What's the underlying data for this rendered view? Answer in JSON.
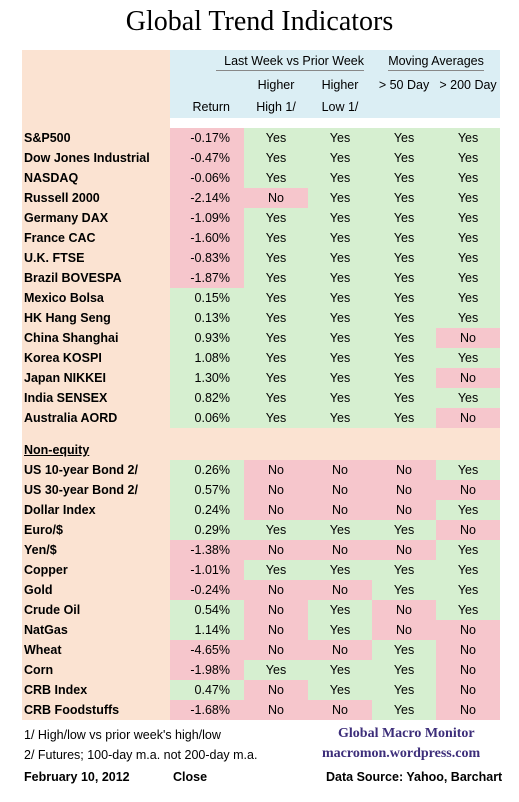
{
  "title": "Global Trend Indicators",
  "header": {
    "group_week": "Last Week vs Prior Week",
    "group_ma": "Moving Averages",
    "return_label": "Return",
    "higher_high_1": "Higher",
    "higher_high_2": "High 1/",
    "higher_low_1": "Higher",
    "higher_low_2": "Low  1/",
    "ma50": "> 50 Day",
    "ma200": "> 200 Day"
  },
  "colors": {
    "yes_bg": "#d6efd0",
    "no_bg": "#f6c6cc",
    "name_bg": "#fbe3d2",
    "header_bg": "#dbeef4"
  },
  "chart_data": {
    "type": "table",
    "title": "Global Trend Indicators",
    "columns": [
      "",
      "Return",
      "Higher High 1/",
      "Higher Low 1/",
      "> 50 Day",
      "> 200 Day"
    ],
    "equity": [
      {
        "name": "S&P500",
        "ret": "-0.17%",
        "hh": "Yes",
        "hl": "Yes",
        "ma50": "Yes",
        "ma200": "Yes"
      },
      {
        "name": "Dow Jones Industrial",
        "ret": "-0.47%",
        "hh": "Yes",
        "hl": "Yes",
        "ma50": "Yes",
        "ma200": "Yes"
      },
      {
        "name": "NASDAQ",
        "ret": "-0.06%",
        "hh": "Yes",
        "hl": "Yes",
        "ma50": "Yes",
        "ma200": "Yes"
      },
      {
        "name": "Russell 2000",
        "ret": "-2.14%",
        "hh": "No",
        "hl": "Yes",
        "ma50": "Yes",
        "ma200": "Yes"
      },
      {
        "name": "Germany DAX",
        "ret": "-1.09%",
        "hh": "Yes",
        "hl": "Yes",
        "ma50": "Yes",
        "ma200": "Yes"
      },
      {
        "name": "France CAC",
        "ret": "-1.60%",
        "hh": "Yes",
        "hl": "Yes",
        "ma50": "Yes",
        "ma200": "Yes"
      },
      {
        "name": "U.K. FTSE",
        "ret": "-0.83%",
        "hh": "Yes",
        "hl": "Yes",
        "ma50": "Yes",
        "ma200": "Yes"
      },
      {
        "name": "Brazil BOVESPA",
        "ret": "-1.87%",
        "hh": "Yes",
        "hl": "Yes",
        "ma50": "Yes",
        "ma200": "Yes"
      },
      {
        "name": "Mexico Bolsa",
        "ret": "0.15%",
        "hh": "Yes",
        "hl": "Yes",
        "ma50": "Yes",
        "ma200": "Yes"
      },
      {
        "name": "HK  Hang Seng",
        "ret": "0.13%",
        "hh": "Yes",
        "hl": "Yes",
        "ma50": "Yes",
        "ma200": "Yes"
      },
      {
        "name": "China Shanghai",
        "ret": "0.93%",
        "hh": "Yes",
        "hl": "Yes",
        "ma50": "Yes",
        "ma200": "No"
      },
      {
        "name": "Korea KOSPI",
        "ret": "1.08%",
        "hh": "Yes",
        "hl": "Yes",
        "ma50": "Yes",
        "ma200": "Yes"
      },
      {
        "name": "Japan NIKKEI",
        "ret": "1.30%",
        "hh": "Yes",
        "hl": "Yes",
        "ma50": "Yes",
        "ma200": "No"
      },
      {
        "name": "India SENSEX",
        "ret": "0.82%",
        "hh": "Yes",
        "hl": "Yes",
        "ma50": "Yes",
        "ma200": "Yes"
      },
      {
        "name": "Australia AORD",
        "ret": "0.06%",
        "hh": "Yes",
        "hl": "Yes",
        "ma50": "Yes",
        "ma200": "No"
      }
    ],
    "section_label": "Non-equity",
    "non_equity": [
      {
        "name": "US 10-year Bond 2/",
        "ret": "0.26%",
        "hh": "No",
        "hl": "No",
        "ma50": "No",
        "ma200": "Yes"
      },
      {
        "name": "US 30-year Bond 2/",
        "ret": "0.57%",
        "hh": "No",
        "hl": "No",
        "ma50": "No",
        "ma200": "No"
      },
      {
        "name": "Dollar Index",
        "ret": "0.24%",
        "hh": "No",
        "hl": "No",
        "ma50": "No",
        "ma200": "Yes"
      },
      {
        "name": "Euro/$",
        "ret": "0.29%",
        "hh": "Yes",
        "hl": "Yes",
        "ma50": "Yes",
        "ma200": "No"
      },
      {
        "name": "Yen/$",
        "ret": "-1.38%",
        "hh": "No",
        "hl": "No",
        "ma50": "No",
        "ma200": "Yes"
      },
      {
        "name": "Copper",
        "ret": "-1.01%",
        "hh": "Yes",
        "hl": "Yes",
        "ma50": "Yes",
        "ma200": "Yes"
      },
      {
        "name": "Gold",
        "ret": "-0.24%",
        "hh": "No",
        "hl": "No",
        "ma50": "Yes",
        "ma200": "Yes"
      },
      {
        "name": "Crude Oil",
        "ret": "0.54%",
        "hh": "No",
        "hl": "Yes",
        "ma50": "No",
        "ma200": "Yes"
      },
      {
        "name": "NatGas",
        "ret": "1.14%",
        "hh": "No",
        "hl": "Yes",
        "ma50": "No",
        "ma200": "No"
      },
      {
        "name": "Wheat",
        "ret": "-4.65%",
        "hh": "No",
        "hl": "No",
        "ma50": "Yes",
        "ma200": "No"
      },
      {
        "name": "Corn",
        "ret": "-1.98%",
        "hh": "Yes",
        "hl": "Yes",
        "ma50": "Yes",
        "ma200": "No"
      },
      {
        "name": "CRB Index",
        "ret": "0.47%",
        "hh": "No",
        "hl": "Yes",
        "ma50": "Yes",
        "ma200": "No"
      },
      {
        "name": "CRB Foodstuffs",
        "ret": "-1.68%",
        "hh": "No",
        "hl": "No",
        "ma50": "Yes",
        "ma200": "No"
      }
    ]
  },
  "footer": {
    "note1": "1/  High/low vs prior week's high/low",
    "note2": "2/  Futures;  100-day m.a. not 200-day m.a.",
    "date": "February 10, 2012",
    "close": "Close",
    "brand1": "Global Macro Monitor",
    "brand2": "macromon.wordpress.com",
    "source": "Data Source: Yahoo, Barchart"
  }
}
